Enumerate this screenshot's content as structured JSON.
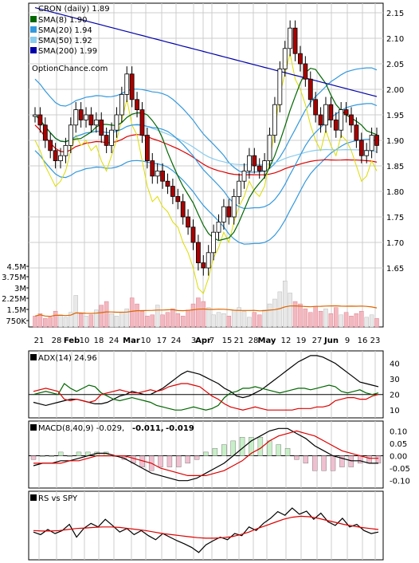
{
  "chart_data": [
    {
      "type": "candlestick",
      "panel": "price",
      "title": "CRON (daily) 1.89",
      "watermark": "OptionChance.com",
      "legend": [
        {
          "label": "SMA(8) 1.90",
          "color": "#006600"
        },
        {
          "label": "SMA(20) 1.94",
          "color": "#3399dd"
        },
        {
          "label": "SMA(50) 1.92",
          "color": "#88ccee"
        },
        {
          "label": "SMA(200) 1.99",
          "color": "#0000aa"
        }
      ],
      "legend_position": "top-left",
      "ylim": [
        1.6,
        2.16
      ],
      "yticks": [
        "2.15",
        "2.10",
        "2.05",
        "2.00",
        "1.95",
        "1.90",
        "1.85",
        "1.80",
        "1.75",
        "1.70",
        "1.65"
      ],
      "grid": true,
      "series_colors": {
        "up_candle": "#ffffff",
        "down_candle": "#aa0000",
        "bollinger": "#3399dd",
        "red_line": "#dd0000",
        "yellow_line": "#dddd00"
      },
      "close": [
        1.95,
        1.93,
        1.9,
        1.88,
        1.86,
        1.87,
        1.89,
        1.93,
        1.96,
        1.94,
        1.95,
        1.93,
        1.94,
        1.91,
        1.89,
        1.92,
        1.95,
        1.99,
        2.03,
        1.98,
        1.96,
        1.91,
        1.86,
        1.83,
        1.84,
        1.82,
        1.81,
        1.79,
        1.78,
        1.75,
        1.73,
        1.7,
        1.66,
        1.65,
        1.68,
        1.72,
        1.74,
        1.77,
        1.75,
        1.79,
        1.82,
        1.84,
        1.87,
        1.85,
        1.84,
        1.86,
        1.91,
        1.97,
        2.04,
        2.08,
        2.12,
        2.07,
        2.05,
        2.02,
        1.98,
        1.95,
        1.93,
        1.97,
        1.94,
        1.92,
        1.96,
        1.95,
        1.93,
        1.9,
        1.87,
        1.88,
        1.91,
        1.89
      ]
    },
    {
      "type": "bar",
      "panel": "volume",
      "yticks": [
        "4.5M",
        "3.75M",
        "3M",
        "2.25M",
        "1.5M",
        "750K"
      ],
      "ylim": [
        0,
        5000000
      ],
      "xticks": [
        "21",
        "28",
        "Feb",
        "10",
        "18",
        "24",
        "Mar",
        "10",
        "17",
        "24",
        "3",
        "Apr",
        "7",
        "15",
        "21",
        "28",
        "May",
        "12",
        "19",
        "27",
        "Jun",
        "9",
        "16",
        "23"
      ],
      "values": [
        0.9,
        1.1,
        0.7,
        0.8,
        1.3,
        1.0,
        0.8,
        1.2,
        2.6,
        1.1,
        0.9,
        1.0,
        1.4,
        1.8,
        2.1,
        1.1,
        0.9,
        1.2,
        1.5,
        2.4,
        1.9,
        1.3,
        0.9,
        1.0,
        1.8,
        1.0,
        1.2,
        1.5,
        1.1,
        0.9,
        1.4,
        1.9,
        2.4,
        2.1,
        1.6,
        1.0,
        1.2,
        1.1,
        0.9,
        1.4,
        1.6,
        1.3,
        0.8,
        1.2,
        1.0,
        1.4,
        1.9,
        2.3,
        2.9,
        3.8,
        2.8,
        2.1,
        1.9,
        1.5,
        1.2,
        1.7,
        1.3,
        1.5,
        1.1,
        1.6,
        1.0,
        1.2,
        0.9,
        1.1,
        1.3,
        0.8,
        1.0,
        0.7
      ],
      "unit": "M"
    },
    {
      "type": "line",
      "panel": "adx",
      "title": "ADX(14) 24.96",
      "yticks": [
        "40",
        "30",
        "20",
        "10"
      ],
      "ylim": [
        5,
        48
      ],
      "series": [
        {
          "color": "#000000",
          "values": [
            15,
            14,
            13,
            14,
            15,
            16,
            17,
            17,
            16,
            15,
            14,
            14,
            15,
            17,
            19,
            20,
            22,
            21,
            20,
            20,
            22,
            24,
            27,
            30,
            33,
            35,
            34,
            33,
            31,
            29,
            27,
            24,
            22,
            19,
            18,
            19,
            21,
            23,
            26,
            29,
            32,
            35,
            38,
            41,
            43,
            45,
            45,
            44,
            42,
            40,
            37,
            34,
            31,
            28,
            27,
            26,
            25
          ]
        },
        {
          "color": "#006600",
          "values": [
            20,
            21,
            22,
            21,
            20,
            27,
            24,
            22,
            24,
            26,
            25,
            21,
            19,
            17,
            16,
            17,
            18,
            17,
            16,
            15,
            13,
            12,
            11,
            10,
            10,
            11,
            12,
            11,
            10,
            11,
            13,
            18,
            21,
            22,
            24,
            24,
            25,
            24,
            23,
            22,
            21,
            22,
            23,
            24,
            24,
            23,
            24,
            25,
            26,
            25,
            22,
            21,
            22,
            23,
            21,
            20,
            21
          ]
        },
        {
          "color": "#dd0000",
          "values": [
            22,
            23,
            24,
            23,
            22,
            17,
            16,
            17,
            16,
            15,
            16,
            20,
            21,
            22,
            23,
            22,
            21,
            21,
            22,
            23,
            22,
            23,
            25,
            26,
            27,
            27,
            26,
            25,
            22,
            19,
            17,
            14,
            12,
            11,
            10,
            11,
            12,
            11,
            10,
            10,
            10,
            10,
            10,
            11,
            11,
            11,
            12,
            12,
            13,
            16,
            17,
            18,
            18,
            17,
            17,
            19,
            20
          ]
        }
      ]
    },
    {
      "type": "bar",
      "panel": "macd",
      "title": "MACD(8,40,9) -0.029,",
      "values_text": [
        {
          "text": "-0.011,",
          "color": "#dd0000"
        },
        {
          "text": "-0.019",
          "color": "#3366cc"
        }
      ],
      "yticks": [
        "0.10",
        "0.05",
        "0.00",
        "-0.05",
        "-0.10"
      ],
      "ylim": [
        -0.13,
        0.14
      ],
      "series": [
        {
          "name": "MACD",
          "color": "#000000",
          "values": [
            -0.04,
            -0.03,
            -0.03,
            -0.02,
            -0.02,
            -0.01,
            0.0,
            0.01,
            0.01,
            0.0,
            -0.01,
            -0.03,
            -0.05,
            -0.07,
            -0.08,
            -0.09,
            -0.1,
            -0.1,
            -0.09,
            -0.07,
            -0.05,
            -0.03,
            0.0,
            0.03,
            0.06,
            0.08,
            0.1,
            0.11,
            0.11,
            0.09,
            0.07,
            0.04,
            0.02,
            0.0,
            -0.01,
            -0.02,
            -0.02,
            -0.03,
            -0.03
          ]
        },
        {
          "name": "Signal",
          "color": "#dd0000",
          "values": [
            -0.03,
            -0.03,
            -0.03,
            -0.03,
            -0.02,
            -0.02,
            -0.01,
            0.0,
            0.0,
            0.0,
            0.0,
            -0.01,
            -0.02,
            -0.03,
            -0.05,
            -0.06,
            -0.07,
            -0.08,
            -0.08,
            -0.08,
            -0.07,
            -0.06,
            -0.04,
            -0.02,
            0.01,
            0.03,
            0.06,
            0.08,
            0.09,
            0.1,
            0.09,
            0.08,
            0.06,
            0.04,
            0.02,
            0.01,
            0.0,
            -0.01,
            -0.01
          ]
        }
      ]
    },
    {
      "type": "line",
      "panel": "relative-strength",
      "title": "RS vs SPY",
      "ylim": [
        0,
        1
      ],
      "series": [
        {
          "color": "#000000",
          "values": [
            0.45,
            0.4,
            0.5,
            0.42,
            0.48,
            0.6,
            0.35,
            0.52,
            0.62,
            0.55,
            0.7,
            0.58,
            0.45,
            0.52,
            0.4,
            0.48,
            0.38,
            0.3,
            0.42,
            0.35,
            0.28,
            0.22,
            0.15,
            0.05,
            0.2,
            0.28,
            0.35,
            0.3,
            0.42,
            0.38,
            0.55,
            0.48,
            0.62,
            0.72,
            0.85,
            0.78,
            0.92,
            0.8,
            0.86,
            0.7,
            0.82,
            0.65,
            0.58,
            0.72,
            0.55,
            0.6,
            0.48,
            0.42,
            0.45
          ]
        },
        {
          "color": "#dd0000",
          "values": [
            0.48,
            0.47,
            0.47,
            0.48,
            0.5,
            0.52,
            0.53,
            0.54,
            0.55,
            0.55,
            0.54,
            0.52,
            0.5,
            0.48,
            0.45,
            0.42,
            0.4,
            0.38,
            0.36,
            0.34,
            0.33,
            0.33,
            0.34,
            0.36,
            0.4,
            0.45,
            0.52,
            0.58,
            0.64,
            0.7,
            0.74,
            0.76,
            0.75,
            0.72,
            0.68,
            0.64,
            0.6,
            0.57,
            0.54,
            0.52,
            0.5
          ]
        }
      ]
    }
  ]
}
